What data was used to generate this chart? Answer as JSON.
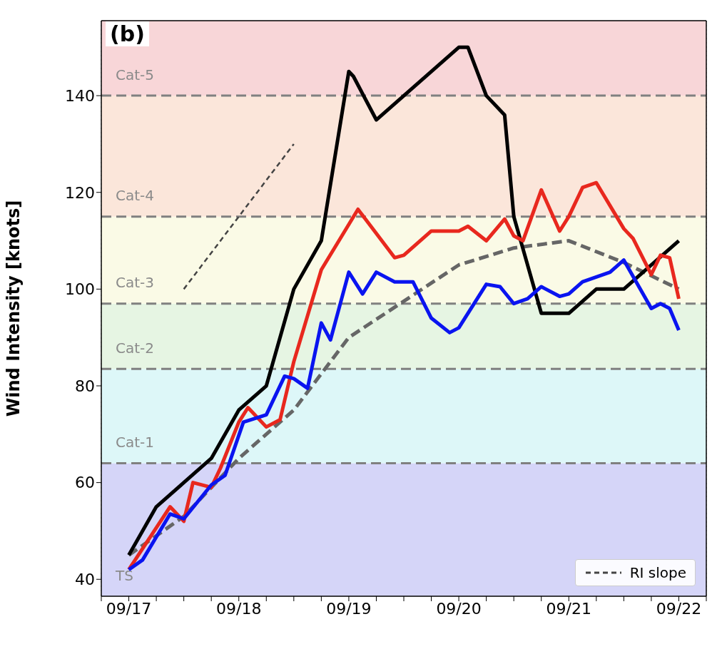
{
  "chart_data": {
    "type": "line",
    "ylabel": "Wind Intensity [knots]",
    "annotations": [
      "(b)"
    ],
    "xlim": [
      "--09-16T18:00",
      "--09-22T06:00"
    ],
    "xticks": [
      {
        "value": "--09-16T18:00",
        "label": null
      },
      {
        "value": "--09-17",
        "label": "09/17"
      },
      {
        "value": "--09-17T06:00",
        "label": null
      },
      {
        "value": "--09-17T12:00",
        "label": null
      },
      {
        "value": "--09-17T18:00",
        "label": null
      },
      {
        "value": "--09-18",
        "label": "09/18"
      },
      {
        "value": "--09-18T06:00",
        "label": null
      },
      {
        "value": "--09-18T12:00",
        "label": null
      },
      {
        "value": "--09-18T18:00",
        "label": null
      },
      {
        "value": "--09-19",
        "label": "09/19"
      },
      {
        "value": "--09-19T06:00",
        "label": null
      },
      {
        "value": "--09-19T12:00",
        "label": null
      },
      {
        "value": "--09-19T18:00",
        "label": null
      },
      {
        "value": "--09-20",
        "label": "09/20"
      },
      {
        "value": "--09-20T06:00",
        "label": null
      },
      {
        "value": "--09-20T12:00",
        "label": null
      },
      {
        "value": "--09-20T18:00",
        "label": null
      },
      {
        "value": "--09-21",
        "label": "09/21"
      },
      {
        "value": "--09-21T06:00",
        "label": null
      },
      {
        "value": "--09-21T12:00",
        "label": null
      },
      {
        "value": "--09-21T18:00",
        "label": null
      },
      {
        "value": "--09-22",
        "label": "09/22"
      },
      {
        "value": "--09-22T06:00",
        "label": null
      }
    ],
    "ylim": [
      36.5,
      155.5
    ],
    "yticks": [
      40,
      60,
      80,
      100,
      120,
      140
    ],
    "grid": "x",
    "marker": "none",
    "legend": "bottom right",
    "bands": [
      {
        "axis": "y",
        "from": 36.5,
        "to": 64,
        "label": "TS",
        "color": "#d5d5f8"
      },
      {
        "axis": "y",
        "from": 64,
        "to": 83.5,
        "label": "Cat-1",
        "color": "#ddf7f8"
      },
      {
        "axis": "y",
        "from": 83.5,
        "to": 97,
        "label": "Cat-2",
        "color": "#e6f5e3"
      },
      {
        "axis": "y",
        "from": 97,
        "to": 115,
        "label": "Cat-3",
        "color": "#fafae6"
      },
      {
        "axis": "y",
        "from": 115,
        "to": 140,
        "label": "Cat-4",
        "color": "#fbe6da"
      },
      {
        "axis": "y",
        "from": 140,
        "to": 155.5,
        "label": "Cat-5",
        "color": "#f8d6d8"
      }
    ],
    "ref_lines": [
      {
        "axis": "y",
        "value": 64,
        "color": "#808080",
        "line_style": "dashed"
      },
      {
        "axis": "y",
        "value": 83.5,
        "color": "#808080",
        "line_style": "dashed"
      },
      {
        "axis": "y",
        "value": 97,
        "color": "#808080",
        "line_style": "dashed"
      },
      {
        "axis": "y",
        "value": 115,
        "color": "#808080",
        "line_style": "dashed"
      },
      {
        "axis": "y",
        "value": 140,
        "color": "#808080",
        "line_style": "dashed"
      }
    ],
    "series": [
      {
        "color": "#666666",
        "line_style": "dashed",
        "x": [
          "--09-17T00:00",
          "--09-17T12:00",
          "--09-18T00:00",
          "--09-18T12:00",
          "--09-19T00:00",
          "--09-19T12:00",
          "--09-20T00:00",
          "--09-20T12:00",
          "--09-21T00:00",
          "--09-21T12:00",
          "--09-22T00:00"
        ],
        "values": [
          45,
          53,
          65,
          75,
          90,
          97.5,
          105,
          108.5,
          110,
          105.5,
          100
        ]
      },
      {
        "color": "#000000",
        "line_style": "solid",
        "x": [
          "--09-17T00:00",
          "--09-17T06:00",
          "--09-17T12:00",
          "--09-17T18:00",
          "--09-18T00:00",
          "--09-18T06:00",
          "--09-18T12:00",
          "--09-18T18:00",
          "--09-19T00:00",
          "--09-19T01:00",
          "--09-19T06:00",
          "--09-20T00:00",
          "--09-20T02:00",
          "--09-20T06:00",
          "--09-20T10:00",
          "--09-20T12:00",
          "--09-20T18:00",
          "--09-21T00:00",
          "--09-21T06:00",
          "--09-21T12:00",
          "--09-22T00:00"
        ],
        "values": [
          45,
          55,
          60,
          65,
          75,
          80,
          100,
          110,
          145,
          144,
          135,
          150,
          150,
          140,
          136,
          115,
          95,
          95,
          100,
          100,
          110
        ]
      },
      {
        "color": "#e8281e",
        "line_style": "solid",
        "x": [
          "--09-17T00:00",
          "--09-17T09:00",
          "--09-17T12:00",
          "--09-17T14:00",
          "--09-17T18:00",
          "--09-17T20:00",
          "--09-18T00:00",
          "--09-18T02:00",
          "--09-18T06:00",
          "--09-18T09:00",
          "--09-18T12:00",
          "--09-18T18:00",
          "--09-19T02:00",
          "--09-19T10:00",
          "--09-19T12:00",
          "--09-19T18:00",
          "--09-20T00:00",
          "--09-20T02:00",
          "--09-20T06:00",
          "--09-20T10:00",
          "--09-20T12:00",
          "--09-20T14:00",
          "--09-20T18:00",
          "--09-20T22:00",
          "--09-21T00:00",
          "--09-21T03:00",
          "--09-21T06:00",
          "--09-21T12:00",
          "--09-21T14:00",
          "--09-21T18:00",
          "--09-21T20:00",
          "--09-21T22:00",
          "--09-22T00:00"
        ],
        "values": [
          42,
          55,
          52,
          60,
          59,
          63,
          72.5,
          75.5,
          71.5,
          73,
          85,
          104,
          116.5,
          106.5,
          107,
          112,
          112,
          113,
          110,
          114.5,
          111,
          110,
          120.5,
          112,
          115,
          121,
          122,
          112.5,
          110.5,
          103,
          107,
          106.5,
          98
        ]
      },
      {
        "color": "#0a14f0",
        "line_style": "solid",
        "x": [
          "--09-17T00:00",
          "--09-17T03:00",
          "--09-17T09:00",
          "--09-17T12:00",
          "--09-17T18:00",
          "--09-17T21:00",
          "--09-18T01:00",
          "--09-18T06:00",
          "--09-18T10:00",
          "--09-18T12:00",
          "--09-18T15:00",
          "--09-18T18:00",
          "--09-18T20:00",
          "--09-19T00:00",
          "--09-19T03:00",
          "--09-19T06:00",
          "--09-19T10:00",
          "--09-19T14:00",
          "--09-19T18:00",
          "--09-19T22:00",
          "--09-20T00:00",
          "--09-20T06:00",
          "--09-20T09:00",
          "--09-20T12:00",
          "--09-20T15:00",
          "--09-20T18:00",
          "--09-20T22:00",
          "--09-21T00:00",
          "--09-21T03:00",
          "--09-21T09:00",
          "--09-21T12:00",
          "--09-21T18:00",
          "--09-21T20:00",
          "--09-21T22:00",
          "--09-22T00:00"
        ],
        "values": [
          42,
          44,
          53.5,
          52.5,
          59.5,
          61.5,
          72.5,
          74,
          82,
          81.5,
          79.5,
          93,
          89.5,
          103.5,
          99,
          103.5,
          101.5,
          101.5,
          94,
          91,
          92,
          101,
          100.5,
          97,
          98,
          100.5,
          98.5,
          99,
          101.5,
          103.5,
          106,
          96,
          97,
          96,
          91.5
        ]
      },
      {
        "name": "RI slope",
        "color": "#444444",
        "line_style": "dashed",
        "x": [
          "--09-17T12:00",
          "--09-18T12:00"
        ],
        "values": [
          100,
          130
        ]
      }
    ]
  }
}
